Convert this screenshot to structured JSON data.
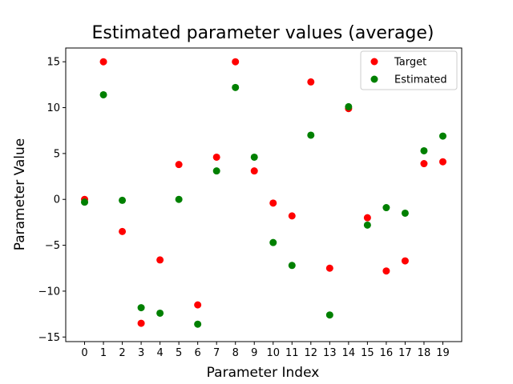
{
  "chart_data": {
    "type": "scatter",
    "title": "Estimated parameter values (average)",
    "xlabel": "Parameter Index",
    "ylabel": "Parameter Value",
    "xlim": [
      -1,
      20
    ],
    "ylim": [
      -15.5,
      16.5
    ],
    "xticks": [
      0,
      1,
      2,
      3,
      4,
      5,
      6,
      7,
      8,
      9,
      10,
      11,
      12,
      13,
      14,
      15,
      16,
      17,
      18,
      19
    ],
    "yticks": [
      -15,
      -10,
      -5,
      0,
      5,
      10,
      15
    ],
    "ytick_labels": [
      "−15",
      "−10",
      "−5",
      "0",
      "5",
      "10",
      "15"
    ],
    "grid": false,
    "legend_position": "top-right",
    "series": [
      {
        "name": "Target",
        "color": "#ff0000",
        "x": [
          0,
          1,
          2,
          3,
          4,
          5,
          6,
          7,
          8,
          9,
          10,
          11,
          12,
          13,
          14,
          15,
          16,
          17,
          18,
          19
        ],
        "y": [
          0.0,
          15.0,
          -3.5,
          -13.5,
          -6.6,
          3.8,
          -11.5,
          4.6,
          15.0,
          3.1,
          -0.4,
          -1.8,
          12.8,
          -7.5,
          9.9,
          -2.0,
          -7.8,
          -6.7,
          3.9,
          4.1
        ]
      },
      {
        "name": "Estimated",
        "color": "#008000",
        "x": [
          0,
          1,
          2,
          3,
          4,
          5,
          6,
          7,
          8,
          9,
          10,
          11,
          12,
          13,
          14,
          15,
          16,
          17,
          18,
          19
        ],
        "y": [
          -0.3,
          11.4,
          -0.1,
          -11.8,
          -12.4,
          0.0,
          -13.6,
          3.1,
          12.2,
          4.6,
          -4.7,
          -7.2,
          7.0,
          -12.6,
          10.1,
          -2.8,
          -0.9,
          -1.5,
          5.3,
          6.9
        ]
      }
    ]
  }
}
